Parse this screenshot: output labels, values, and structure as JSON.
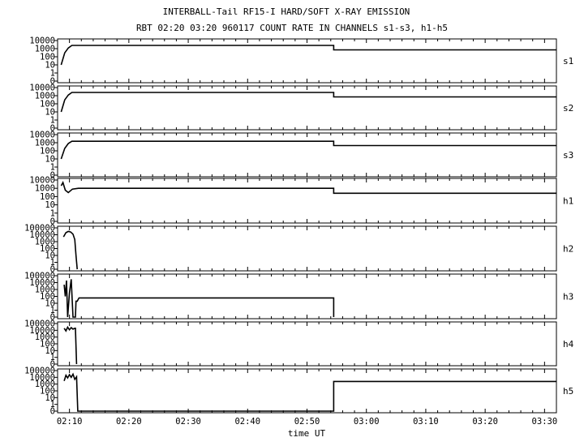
{
  "chart_data": {
    "type": "line",
    "title": "INTERBALL-Tail RF15-I HARD/SOFT X-RAY EMISSION",
    "subtitle": "RBT 02:20 03:20 960117  COUNT RATE IN CHANNELS s1-s3, h1-h5",
    "xlabel": "time UT",
    "x_tick_labels": [
      "02:10",
      "02:20",
      "02:30",
      "02:40",
      "02:50",
      "03:00",
      "03:10",
      "03:20",
      "03:30"
    ],
    "x_tick_minutes": [
      10,
      20,
      30,
      40,
      50,
      60,
      70,
      80,
      90
    ],
    "xlim_minutes": [
      8,
      92
    ],
    "y_scale": "log",
    "panels": [
      {
        "name": "s1",
        "y_tick_labels": [
          "10000",
          "1000",
          "100",
          "10",
          "1",
          "0"
        ],
        "ylim": [
          0.1,
          10000
        ],
        "x": [
          8.6,
          9.2,
          9.8,
          10.4,
          11.5,
          54.5,
          54.5,
          92
        ],
        "y": [
          10,
          300,
          1200,
          2500,
          2500,
          2500,
          700,
          700
        ]
      },
      {
        "name": "s2",
        "y_tick_labels": [
          "10000",
          "1000",
          "100",
          "10",
          "1",
          "0"
        ],
        "ylim": [
          0.1,
          10000
        ],
        "x": [
          8.6,
          9.2,
          9.8,
          10.4,
          11.5,
          54.5,
          54.5,
          92
        ],
        "y": [
          10,
          300,
          1200,
          2500,
          2500,
          2500,
          700,
          700
        ]
      },
      {
        "name": "s3",
        "y_tick_labels": [
          "10000",
          "1000",
          "100",
          "10",
          "1",
          "0"
        ],
        "ylim": [
          0.1,
          10000
        ],
        "x": [
          8.6,
          9.2,
          9.8,
          10.4,
          11.5,
          54.5,
          54.5,
          92
        ],
        "y": [
          10,
          200,
          800,
          1500,
          1500,
          1500,
          450,
          450
        ]
      },
      {
        "name": "h1",
        "y_tick_labels": [
          "10000",
          "1000",
          "100",
          "10",
          "1",
          "0"
        ],
        "ylim": [
          0.1,
          10000
        ],
        "x": [
          8.6,
          8.9,
          9.3,
          9.8,
          10.5,
          11.5,
          54.5,
          54.5,
          92
        ],
        "y": [
          2000,
          5000,
          600,
          300,
          800,
          1000,
          1000,
          250,
          250
        ]
      },
      {
        "name": "h2",
        "y_tick_labels": [
          "100000",
          "10000",
          "1000",
          "100",
          "10",
          "1",
          "0"
        ],
        "ylim": [
          0.1,
          100000
        ],
        "x": [
          9.0,
          9.4,
          9.8,
          10.2,
          10.6,
          10.9,
          11.1,
          11.3
        ],
        "y": [
          5000,
          20000,
          30000,
          25000,
          12000,
          2000,
          10,
          0.1
        ]
      },
      {
        "name": "h3",
        "y_tick_labels": [
          "100000",
          "10000",
          "1000",
          "100",
          "10",
          "1",
          "0"
        ],
        "ylim": [
          0.1,
          100000
        ],
        "x": [
          9.1,
          9.3,
          9.5,
          9.7,
          10.0,
          10.3,
          10.6,
          11.0,
          11.1,
          11.3,
          11.6,
          54.5,
          54.5
        ],
        "y": [
          5000,
          100,
          20000,
          0.1,
          300,
          30000,
          0.1,
          0.1,
          20,
          20,
          60,
          60,
          0.1
        ]
      },
      {
        "name": "h4",
        "y_tick_labels": [
          "100000",
          "10000",
          "1000",
          "100",
          "10",
          "1",
          "0"
        ],
        "ylim": [
          0.1,
          100000
        ],
        "x": [
          9.1,
          9.4,
          9.7,
          10.0,
          10.3,
          10.6,
          10.9,
          11.0,
          11.2
        ],
        "y": [
          20000,
          8000,
          30000,
          12000,
          25000,
          15000,
          20000,
          20000,
          0.1
        ]
      },
      {
        "name": "h5",
        "y_tick_labels": [
          "100000",
          "10000",
          "1000",
          "100",
          "10",
          "1",
          "0"
        ],
        "ylim": [
          0.1,
          100000
        ],
        "x": [
          9.1,
          9.4,
          9.7,
          10.0,
          10.3,
          10.6,
          10.9,
          11.2,
          11.4,
          54.5,
          54.5,
          92
        ],
        "y": [
          3000,
          20000,
          8000,
          25000,
          10000,
          30000,
          5000,
          12000,
          0.1,
          0.1,
          2500,
          2500
        ]
      }
    ]
  }
}
